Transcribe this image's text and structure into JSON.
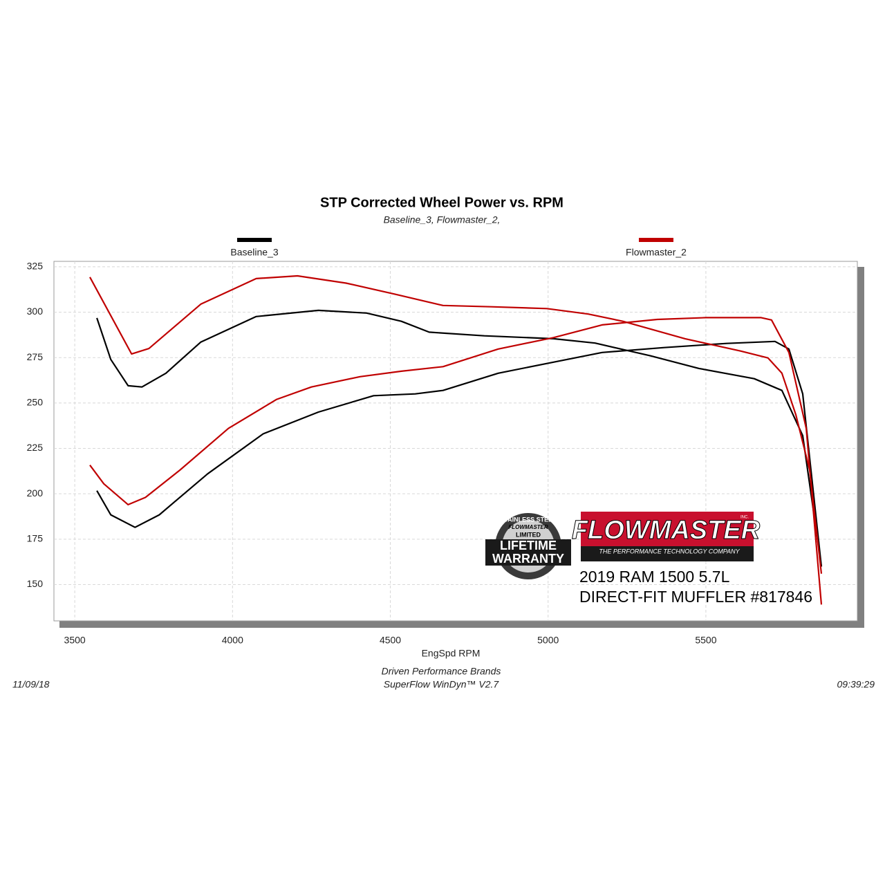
{
  "chart_data": {
    "type": "line",
    "title": "STP Corrected Wheel Power vs. RPM",
    "subtitle": "Baseline_3, Flowmaster_2,",
    "x_label": "EngSpd  RPM",
    "xlim": [
      3434,
      5980
    ],
    "xticks": [
      3500,
      4000,
      4500,
      5000,
      5500
    ],
    "ylim": [
      130,
      328
    ],
    "yticks": [
      150,
      175,
      200,
      225,
      250,
      275,
      300,
      325
    ],
    "grid": true,
    "series": [
      {
        "name": "Baseline_3",
        "color": "#000000",
        "curves": [
          {
            "x": [
              3570,
              3614,
              3669,
              3713,
              3789,
              3899,
              4075,
              4272,
              4425,
              4535,
              4623,
              4798,
              5017,
              5149,
              5324,
              5478,
              5653,
              5741,
              5807,
              5866
            ],
            "values": [
              296.8,
              274,
              259.5,
              258.8,
              266.4,
              283.5,
              297.6,
              301,
              299.5,
              295,
              289,
              287,
              285.4,
              283,
              276,
              269,
              263.4,
              256.9,
              232,
              159.9
            ]
          },
          {
            "x": [
              3570,
              3614,
              3691,
              3768,
              3921,
              4097,
              4272,
              4447,
              4579,
              4667,
              4842,
              5017,
              5171,
              5368,
              5566,
              5719,
              5763,
              5807,
              5866
            ],
            "values": [
              201.7,
              188.4,
              181.5,
              188.4,
              211,
              233,
              245,
              254,
              255,
              256.9,
              266.4,
              272.5,
              277.8,
              280.5,
              282.8,
              283.9,
              279.7,
              255,
              159.9
            ]
          }
        ]
      },
      {
        "name": "Flowmaster_2",
        "color": "#c00000",
        "curves": [
          {
            "x": [
              3548,
              3680,
              3735,
              3900,
              4075,
              4206,
              4360,
              4513,
              4667,
              4820,
              4996,
              5127,
              5237,
              5434,
              5610,
              5697,
              5741,
              5785,
              5829,
              5866
            ],
            "values": [
              319.3,
              277,
              280,
              304.5,
              318.5,
              320,
              316,
              310,
              303.7,
              303,
              302,
              299,
              295,
              285.4,
              278.6,
              274.8,
              266.4,
              243.6,
              213,
              156
            ]
          },
          {
            "x": [
              3548,
              3592,
              3669,
              3724,
              3833,
              3987,
              4140,
              4250,
              4404,
              4535,
              4667,
              4842,
              5017,
              5171,
              5346,
              5500,
              5675,
              5708,
              5763,
              5818,
              5866
            ],
            "values": [
              215.8,
              205.5,
              194,
              198,
              213,
              236,
              252,
              258.8,
              264.5,
              267.5,
              270,
              279.7,
              286,
              293,
              296,
              297,
              297,
              295.7,
              277.8,
              236,
              139
            ]
          }
        ]
      }
    ],
    "annotations": [
      "2019 RAM 1500 5.7L",
      "DIRECT-FIT MUFFLER #817846"
    ],
    "logo": {
      "brand": "FLOWMASTER",
      "inc": "INC.",
      "tagline": "THE PERFORMANCE TECHNOLOGY COMPANY"
    },
    "badge": {
      "top": "STAINLESS STEEL",
      "brand": "FLOWMASTER",
      "limited": "LIMITED",
      "line1": "LIFETIME",
      "line2": "WARRANTY"
    },
    "footer": {
      "company": "Driven Performance Brands",
      "software": "SuperFlow WinDyn™  V2.7",
      "date": "11/09/18",
      "time": "09:39:29"
    }
  }
}
